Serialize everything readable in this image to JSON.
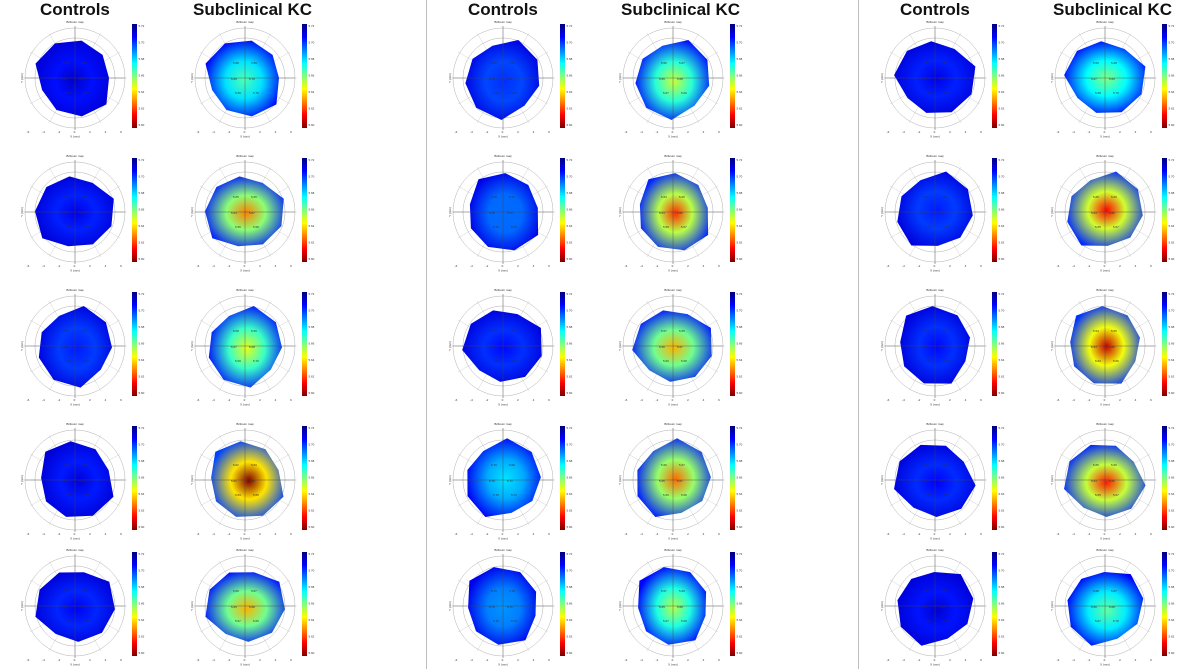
{
  "headers": {
    "controls": "Controls",
    "subclinical": "Subclinical KC"
  },
  "map_title": "Brillouin map",
  "axis_x": "X (mm)",
  "axis_y": "Y (mm)",
  "x_ticks": [
    "-6",
    "-4",
    "-2",
    "0",
    "2",
    "4",
    "6"
  ],
  "colorbar_ticks": [
    "5.72",
    "5.70",
    "5.68",
    "5.66",
    "5.64",
    "5.62",
    "5.60"
  ],
  "colors": {
    "colorbar": [
      "#00007f",
      "#0000ff",
      "#007fff",
      "#00ffff",
      "#7fff7f",
      "#ffff00",
      "#ff7f00",
      "#ff0000",
      "#7f0000"
    ],
    "divider": "#bdbdbd"
  },
  "panels": [
    {
      "controls": [
        {
          "severity": 0.02,
          "labels": [
            "5.72",
            "5.72",
            "5.71",
            "5.72",
            "5.72",
            "5.72"
          ]
        },
        {
          "severity": 0.05,
          "labels": [
            "5.71",
            "5.72",
            "5.72",
            "5.71",
            "5.72",
            "5.72"
          ]
        },
        {
          "severity": 0.1,
          "labels": [
            "5.72",
            "5.71",
            "5.70",
            "5.71",
            "5.70",
            "5.71"
          ]
        },
        {
          "severity": 0.04,
          "labels": [
            "5.73",
            "5.72",
            "5.72",
            "5.71",
            "5.72",
            "5.72"
          ]
        },
        {
          "severity": 0.06,
          "labels": [
            "5.72",
            "5.71",
            "5.72",
            "5.72",
            "5.71",
            "5.72"
          ]
        }
      ],
      "subclinical": [
        {
          "severity": 0.3,
          "labels": [
            "5.68",
            "5.69",
            "5.68",
            "5.70",
            "5.69",
            "5.70"
          ]
        },
        {
          "severity": 0.6,
          "labels": [
            "5.65",
            "5.66",
            "5.64",
            "5.67",
            "5.66",
            "5.68"
          ]
        },
        {
          "severity": 0.45,
          "labels": [
            "5.68",
            "5.69",
            "5.67",
            "5.68",
            "5.69",
            "5.70"
          ]
        },
        {
          "severity": 0.92,
          "labels": [
            "5.62",
            "5.63",
            "5.61",
            "5.64",
            "5.63",
            "5.65"
          ]
        },
        {
          "severity": 0.55,
          "labels": [
            "5.66",
            "5.67",
            "5.65",
            "5.68",
            "5.67",
            "5.69"
          ]
        }
      ]
    },
    {
      "controls": [
        {
          "severity": 0.12,
          "labels": [
            "5.72",
            "5.71",
            "5.70",
            "5.71",
            "5.72",
            "5.71"
          ]
        },
        {
          "severity": 0.18,
          "labels": [
            "5.70",
            "5.71",
            "5.70",
            "5.71",
            "5.70",
            "5.72"
          ]
        },
        {
          "severity": 0.08,
          "labels": [
            "5.72",
            "5.72",
            "5.71",
            "5.72",
            "5.71",
            "5.72"
          ]
        },
        {
          "severity": 0.3,
          "labels": [
            "5.70",
            "5.69",
            "5.70",
            "5.71",
            "5.70",
            "5.71"
          ]
        },
        {
          "severity": 0.22,
          "labels": [
            "5.71",
            "5.70",
            "5.70",
            "5.71",
            "5.70",
            "5.72"
          ]
        }
      ],
      "subclinical": [
        {
          "severity": 0.42,
          "labels": [
            "5.66",
            "5.67",
            "5.66",
            "5.68",
            "5.67",
            "5.69"
          ]
        },
        {
          "severity": 0.68,
          "labels": [
            "5.64",
            "5.65",
            "5.63",
            "5.66",
            "5.65",
            "5.67"
          ]
        },
        {
          "severity": 0.55,
          "labels": [
            "5.67",
            "5.65",
            "5.66",
            "5.67",
            "5.66",
            "5.68"
          ]
        },
        {
          "severity": 0.62,
          "labels": [
            "5.66",
            "5.67",
            "5.65",
            "5.67",
            "5.66",
            "5.68"
          ]
        },
        {
          "severity": 0.4,
          "labels": [
            "5.67",
            "5.66",
            "5.65",
            "5.68",
            "5.67",
            "5.69"
          ]
        }
      ]
    },
    {
      "controls": [
        {
          "severity": 0.05,
          "labels": [
            "5.73",
            "5.72",
            "5.72",
            "5.71",
            "5.72",
            "5.72"
          ]
        },
        {
          "severity": 0.1,
          "labels": [
            "5.71",
            "5.72",
            "5.71",
            "5.72",
            "5.71",
            "5.72"
          ]
        },
        {
          "severity": 0.08,
          "labels": [
            "5.72",
            "5.71",
            "5.72",
            "5.72",
            "5.71",
            "5.72"
          ]
        },
        {
          "severity": 0.07,
          "labels": [
            "5.72",
            "5.72",
            "5.71",
            "5.71",
            "5.72",
            "5.73"
          ]
        },
        {
          "severity": 0.03,
          "labels": [
            "5.73",
            "5.72",
            "5.72",
            "5.72",
            "5.71",
            "5.72"
          ]
        }
      ],
      "subclinical": [
        {
          "severity": 0.35,
          "labels": [
            "5.69",
            "5.68",
            "5.67",
            "5.69",
            "5.68",
            "5.70"
          ]
        },
        {
          "severity": 0.72,
          "labels": [
            "5.65",
            "5.66",
            "5.64",
            "5.66",
            "5.65",
            "5.67"
          ]
        },
        {
          "severity": 0.78,
          "labels": [
            "5.64",
            "5.65",
            "5.63",
            "5.65",
            "5.64",
            "5.66"
          ]
        },
        {
          "severity": 0.7,
          "labels": [
            "5.65",
            "5.66",
            "5.64",
            "5.66",
            "5.65",
            "5.67"
          ]
        },
        {
          "severity": 0.32,
          "labels": [
            "5.68",
            "5.67",
            "5.66",
            "5.68",
            "5.67",
            "5.70"
          ]
        }
      ]
    }
  ]
}
